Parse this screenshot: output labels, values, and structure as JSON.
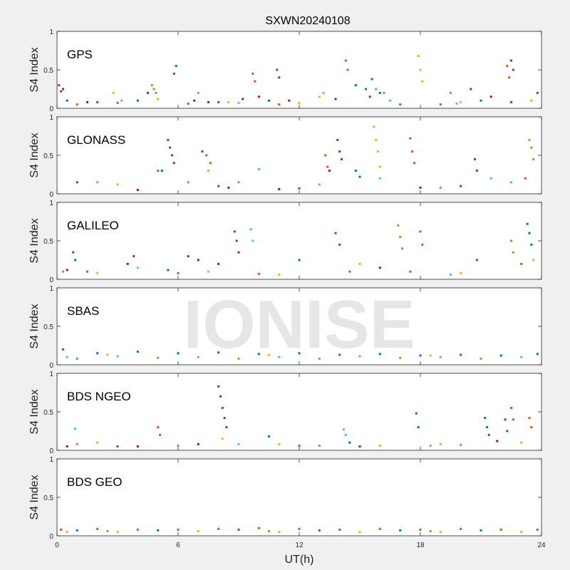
{
  "figure": {
    "title": "SXWN20240108",
    "xlabel": "UT(h)",
    "watermark": "IONISE"
  },
  "colors": {
    "series": [
      "#0072BD",
      "#D95319",
      "#EDB120",
      "#7E2F8E",
      "#77AC30",
      "#4DBEEE",
      "#A2142F"
    ],
    "axes_bg": "#ffffff",
    "figure_bg": "#f0f0f0"
  },
  "chart_data": [
    {
      "type": "scatter",
      "panel_label": "GPS",
      "ylabel": "S4 Index",
      "xlim": [
        0,
        24
      ],
      "ylim": [
        0,
        1
      ],
      "xticks": [
        0,
        6,
        12,
        18,
        24
      ],
      "yticks": [
        0,
        0.5,
        1
      ],
      "ytick_labels": [
        "0",
        "0.5",
        "1"
      ],
      "series": [
        {
          "color_index": 0,
          "x": [
            0.5,
            2.0,
            4.0,
            5.8,
            5.9,
            8.0,
            10.5,
            14.8,
            15.3,
            15.6,
            16.0,
            21.0,
            22.5
          ],
          "y": [
            0.1,
            0.08,
            0.1,
            0.45,
            0.55,
            0.08,
            0.1,
            0.3,
            0.25,
            0.38,
            0.2,
            0.1,
            0.08
          ]
        },
        {
          "color_index": 1,
          "x": [
            1.0,
            3.0,
            6.5,
            9.7,
            9.8,
            11.0,
            14.3,
            14.4,
            17.0,
            19.0,
            22.3,
            22.4
          ],
          "y": [
            0.05,
            0.07,
            0.06,
            0.45,
            0.35,
            0.05,
            0.62,
            0.5,
            0.05,
            0.05,
            0.55,
            0.4
          ]
        },
        {
          "color_index": 2,
          "x": [
            2.8,
            5.0,
            8.5,
            12.0,
            13.0,
            17.9,
            18.0,
            18.1,
            20.0,
            23.5
          ],
          "y": [
            0.2,
            0.12,
            0.08,
            0.07,
            0.15,
            0.68,
            0.5,
            0.35,
            0.08,
            0.1
          ]
        },
        {
          "color_index": 3,
          "x": [
            0.1,
            0.2,
            0.3,
            4.5,
            10.9,
            11.0,
            15.5,
            20.5,
            22.5,
            22.6,
            23.8
          ],
          "y": [
            0.3,
            0.22,
            0.25,
            0.2,
            0.5,
            0.4,
            0.15,
            0.25,
            0.62,
            0.5,
            0.2
          ]
        },
        {
          "color_index": 4,
          "x": [
            4.7,
            4.8,
            4.9,
            15.8,
            16.2,
            19.5
          ],
          "y": [
            0.3,
            0.25,
            0.2,
            0.25,
            0.2,
            0.2
          ]
        },
        {
          "color_index": 5,
          "x": [
            3.2,
            7.0,
            9.0,
            13.2,
            16.5,
            19.8
          ],
          "y": [
            0.1,
            0.2,
            0.07,
            0.2,
            0.1,
            0.06
          ]
        },
        {
          "color_index": 6,
          "x": [
            1.5,
            6.8,
            7.5,
            9.2,
            10.0,
            11.5,
            13.8,
            21.5
          ],
          "y": [
            0.08,
            0.1,
            0.08,
            0.12,
            0.15,
            0.1,
            0.12,
            0.15
          ]
        }
      ]
    },
    {
      "type": "scatter",
      "panel_label": "GLONASS",
      "ylabel": "S4 Index",
      "xlim": [
        0,
        24
      ],
      "ylim": [
        0,
        1
      ],
      "xticks": [
        0,
        6,
        12,
        18,
        24
      ],
      "yticks": [
        0,
        0.5,
        1
      ],
      "ytick_labels": [
        "0",
        "0.5",
        "1"
      ],
      "series": [
        {
          "color_index": 0,
          "x": [
            1.0,
            5.2,
            8.0,
            12.0,
            14.8,
            15.0,
            20.0
          ],
          "y": [
            0.15,
            0.3,
            0.1,
            0.07,
            0.3,
            0.22,
            0.1
          ]
        },
        {
          "color_index": 1,
          "x": [
            5.0,
            7.4,
            7.6,
            13.3,
            13.4,
            17.5,
            17.6,
            17.7,
            23.2
          ],
          "y": [
            0.3,
            0.5,
            0.4,
            0.5,
            0.35,
            0.72,
            0.55,
            0.4,
            0.2
          ]
        },
        {
          "color_index": 2,
          "x": [
            3.0,
            7.5,
            15.7,
            15.8,
            15.9,
            16.0
          ],
          "y": [
            0.12,
            0.3,
            0.87,
            0.7,
            0.55,
            0.35
          ]
        },
        {
          "color_index": 3,
          "x": [
            5.5,
            5.6,
            5.7,
            5.8,
            7.2,
            13.9,
            14.0,
            14.1,
            20.7,
            20.8
          ],
          "y": [
            0.7,
            0.6,
            0.5,
            0.4,
            0.55,
            0.7,
            0.55,
            0.45,
            0.45,
            0.3
          ]
        },
        {
          "color_index": 4,
          "x": [
            6.5,
            9.0,
            19.0,
            23.4,
            23.5,
            23.6
          ],
          "y": [
            0.15,
            0.15,
            0.08,
            0.7,
            0.6,
            0.45
          ]
        },
        {
          "color_index": 5,
          "x": [
            2.0,
            10.0,
            13.0,
            16.0,
            21.5,
            22.5
          ],
          "y": [
            0.15,
            0.32,
            0.12,
            0.2,
            0.2,
            0.15
          ]
        },
        {
          "color_index": 6,
          "x": [
            4.0,
            8.5,
            11.0,
            13.5,
            18.0
          ],
          "y": [
            0.05,
            0.08,
            0.06,
            0.3,
            0.08
          ]
        }
      ]
    },
    {
      "type": "scatter",
      "panel_label": "GALILEO",
      "ylabel": "S4 Index",
      "xlim": [
        0,
        24
      ],
      "ylim": [
        0,
        1
      ],
      "xticks": [
        0,
        6,
        12,
        18,
        24
      ],
      "yticks": [
        0,
        0.5,
        1
      ],
      "ytick_labels": [
        "0",
        "0.5",
        "1"
      ],
      "series": [
        {
          "color_index": 0,
          "x": [
            0.8,
            0.9,
            5.5,
            12.0,
            13.8,
            14.0,
            23.3,
            23.4,
            23.5
          ],
          "y": [
            0.35,
            0.25,
            0.12,
            0.25,
            0.6,
            0.45,
            0.72,
            0.6,
            0.45
          ]
        },
        {
          "color_index": 1,
          "x": [
            1.5,
            6.0,
            10.0,
            14.5,
            17.5,
            18.0,
            18.1,
            23.0
          ],
          "y": [
            0.1,
            0.08,
            0.07,
            0.1,
            0.1,
            0.62,
            0.45,
            0.2
          ]
        },
        {
          "color_index": 2,
          "x": [
            2.0,
            7.5,
            11.0,
            15.0,
            20.0,
            23.6
          ],
          "y": [
            0.08,
            0.1,
            0.06,
            0.2,
            0.08,
            0.25
          ]
        },
        {
          "color_index": 3,
          "x": [
            3.8,
            6.5,
            8.8,
            8.9,
            9.0,
            20.8
          ],
          "y": [
            0.3,
            0.3,
            0.62,
            0.5,
            0.35,
            0.25
          ]
        },
        {
          "color_index": 4,
          "x": [
            0.3,
            16.9,
            17.0,
            17.1,
            22.5,
            22.6
          ],
          "y": [
            0.1,
            0.7,
            0.55,
            0.4,
            0.5,
            0.35
          ]
        },
        {
          "color_index": 5,
          "x": [
            0.6,
            4.0,
            9.6,
            9.7,
            19.5
          ],
          "y": [
            0.65,
            0.15,
            0.65,
            0.5,
            0.06
          ]
        },
        {
          "color_index": 6,
          "x": [
            0.5,
            3.5,
            7.0,
            8.0,
            16.0
          ],
          "y": [
            0.12,
            0.2,
            0.25,
            0.2,
            0.15
          ]
        }
      ]
    },
    {
      "type": "scatter",
      "panel_label": "SBAS",
      "ylabel": "S4 Index",
      "xlim": [
        0,
        24
      ],
      "ylim": [
        0,
        1
      ],
      "xticks": [
        0,
        6,
        12,
        18,
        24
      ],
      "yticks": [
        0,
        0.5,
        1
      ],
      "ytick_labels": [
        "0",
        "0.5",
        "1"
      ],
      "series": [
        {
          "color_index": 0,
          "x": [
            0.3,
            2.0,
            4.0,
            6.0,
            8.0,
            10.0,
            12.0,
            14.0,
            16.0,
            18.0,
            20.0,
            22.0,
            23.8
          ],
          "y": [
            0.2,
            0.15,
            0.17,
            0.15,
            0.16,
            0.14,
            0.15,
            0.13,
            0.14,
            0.12,
            0.13,
            0.12,
            0.14
          ]
        },
        {
          "color_index": 4,
          "x": [
            1.0,
            5.0,
            9.0,
            13.0,
            17.0,
            21.0
          ],
          "y": [
            0.08,
            0.09,
            0.08,
            0.08,
            0.09,
            0.08
          ]
        },
        {
          "color_index": 5,
          "x": [
            0.5,
            3.0,
            7.0,
            11.0,
            15.0,
            19.0,
            23.0
          ],
          "y": [
            0.1,
            0.11,
            0.1,
            0.1,
            0.11,
            0.1,
            0.1
          ]
        },
        {
          "color_index": 2,
          "x": [
            2.5,
            10.5,
            18.5
          ],
          "y": [
            0.13,
            0.13,
            0.12
          ]
        }
      ]
    },
    {
      "type": "scatter",
      "panel_label": "BDS NGEO",
      "ylabel": "S4 Index",
      "xlim": [
        0,
        24
      ],
      "ylim": [
        0,
        1
      ],
      "xticks": [
        0,
        6,
        12,
        18,
        24
      ],
      "yticks": [
        0,
        0.5,
        1
      ],
      "ytick_labels": [
        "0",
        "0.5",
        "1"
      ],
      "series": [
        {
          "color_index": 0,
          "x": [
            3.0,
            10.5,
            14.5,
            17.8,
            17.9,
            21.2,
            21.3,
            21.4
          ],
          "y": [
            0.05,
            0.18,
            0.1,
            0.48,
            0.3,
            0.42,
            0.3,
            0.2
          ]
        },
        {
          "color_index": 1,
          "x": [
            5.0,
            5.1,
            12.0,
            22.5,
            22.6,
            23.4,
            23.5
          ],
          "y": [
            0.3,
            0.2,
            0.06,
            0.55,
            0.4,
            0.42,
            0.3
          ]
        },
        {
          "color_index": 2,
          "x": [
            2.0,
            8.2,
            11.0,
            16.0,
            19.0,
            23.0
          ],
          "y": [
            0.1,
            0.15,
            0.08,
            0.06,
            0.08,
            0.1
          ]
        },
        {
          "color_index": 3,
          "x": [
            8.0,
            8.1,
            8.2,
            8.3,
            8.4,
            22.2,
            22.3
          ],
          "y": [
            0.83,
            0.7,
            0.55,
            0.42,
            0.3,
            0.4,
            0.25
          ]
        },
        {
          "color_index": 4,
          "x": [
            1.0,
            6.0,
            13.0,
            20.0
          ],
          "y": [
            0.08,
            0.06,
            0.06,
            0.07
          ]
        },
        {
          "color_index": 5,
          "x": [
            0.9,
            9.0,
            14.2,
            14.3,
            18.5
          ],
          "y": [
            0.28,
            0.08,
            0.27,
            0.2,
            0.06
          ]
        },
        {
          "color_index": 6,
          "x": [
            0.5,
            4.0,
            7.0,
            15.0,
            21.8
          ],
          "y": [
            0.05,
            0.05,
            0.08,
            0.05,
            0.12
          ]
        }
      ]
    },
    {
      "type": "scatter",
      "panel_label": "BDS GEO",
      "ylabel": "S4 Index",
      "xlim": [
        0,
        24
      ],
      "ylim": [
        0,
        1
      ],
      "xticks": [
        0,
        6,
        12,
        18,
        24
      ],
      "xtick_labels": [
        "0",
        "6",
        "12",
        "18",
        "24"
      ],
      "yticks": [
        0,
        0.5,
        1
      ],
      "ytick_labels": [
        "0",
        "0.5",
        "1"
      ],
      "series": [
        {
          "color_index": 1,
          "x": [
            0.2,
            2.0,
            4.0,
            6.0,
            8.0,
            10.0,
            12.0,
            14.0,
            16.0,
            18.0,
            20.0,
            22.0,
            23.8
          ],
          "y": [
            0.08,
            0.09,
            0.08,
            0.08,
            0.09,
            0.1,
            0.09,
            0.08,
            0.09,
            0.08,
            0.09,
            0.08,
            0.08
          ]
        },
        {
          "color_index": 2,
          "x": [
            0.5,
            3.0,
            7.0,
            11.0,
            15.0,
            19.0,
            23.0
          ],
          "y": [
            0.05,
            0.05,
            0.06,
            0.05,
            0.05,
            0.05,
            0.05
          ]
        },
        {
          "color_index": 0,
          "x": [
            1.0,
            5.0,
            9.0,
            13.0,
            17.0,
            21.0
          ],
          "y": [
            0.07,
            0.07,
            0.08,
            0.07,
            0.07,
            0.07
          ]
        },
        {
          "color_index": 4,
          "x": [
            2.5,
            10.5,
            18.5
          ],
          "y": [
            0.06,
            0.06,
            0.06
          ]
        }
      ]
    }
  ]
}
